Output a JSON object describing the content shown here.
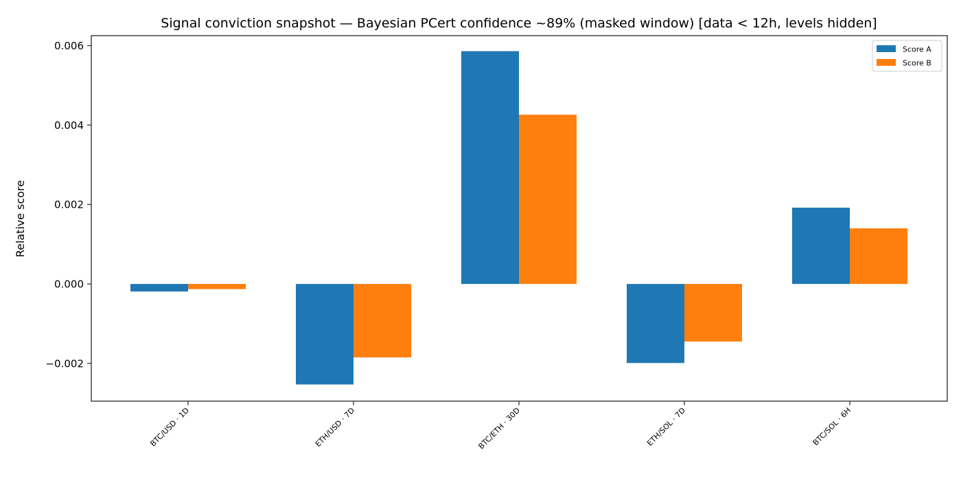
{
  "chart_data": {
    "type": "bar",
    "title": "Signal conviction snapshot — Bayesian PCert confidence ~89% (masked window) [data < 12h, levels hidden]",
    "xlabel": "",
    "ylabel": "Relative score",
    "categories": [
      "BTC/USD · 1D",
      "ETH/USD · 7D",
      "BTC/ETH · 30D",
      "ETH/SOL · 7D",
      "BTC/SOL · 6H"
    ],
    "series": [
      {
        "name": "Score A",
        "color": "#1f77b4",
        "values": [
          -0.00019,
          -0.00253,
          0.00586,
          -0.00199,
          0.00192
        ]
      },
      {
        "name": "Score B",
        "color": "#ff7f0e",
        "values": [
          -0.00013,
          -0.00185,
          0.00426,
          -0.00145,
          0.0014
        ]
      }
    ],
    "ylim": [
      -0.00295,
      0.00625
    ],
    "yticks": [
      -0.002,
      0.0,
      0.002,
      0.004,
      0.006
    ],
    "ytick_labels": [
      "−0.002",
      "0.000",
      "0.002",
      "0.004",
      "0.006"
    ],
    "grid": false,
    "legend_position": "upper right"
  }
}
